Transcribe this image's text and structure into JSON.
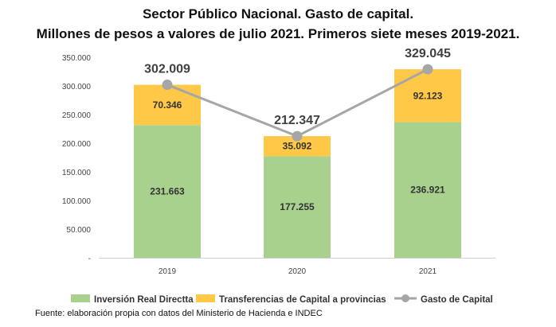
{
  "title_line1": "Sector Público Nacional. Gasto de capital.",
  "title_line2": "Millones de pesos a valores de julio 2021. Primeros siete meses 2019-2021.",
  "source": "Fuente: elaboración propia con datos del Ministerio de Hacienda e INDEC",
  "chart_data": {
    "type": "bar",
    "stacked": true,
    "categories": [
      "2019",
      "2020",
      "2021"
    ],
    "series": [
      {
        "name": "Inversión Real Directta",
        "values": [
          231663,
          177255,
          236921
        ],
        "labels": [
          "231.663",
          "177.255",
          "236.921"
        ],
        "color": "#a9d18e"
      },
      {
        "name": "Transferencias de Capital a provincias",
        "values": [
          70346,
          35092,
          92123
        ],
        "labels": [
          "70.346",
          "35.092",
          "92.123"
        ],
        "color": "#ffc846"
      },
      {
        "name": "Gasto de Capital",
        "kind": "line",
        "values": [
          302009,
          212347,
          329045
        ],
        "labels": [
          "302.009",
          "212.347",
          "329.045"
        ],
        "color": "#a6a6a6"
      }
    ],
    "yticks": [
      "-",
      "50.000",
      "100.000",
      "150.000",
      "200.000",
      "250.000",
      "300.000",
      "350.000"
    ],
    "ylim": [
      0,
      350000
    ],
    "grid": false,
    "legend_position": "bottom"
  }
}
